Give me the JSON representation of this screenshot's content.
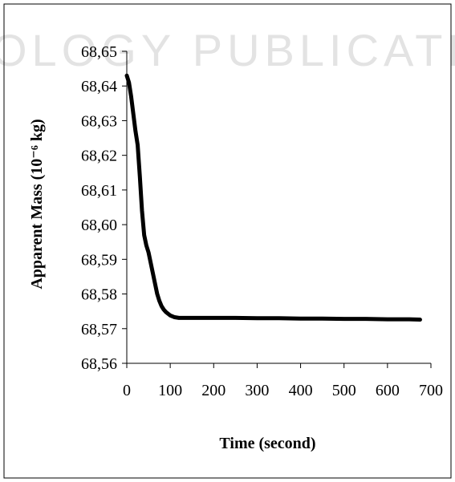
{
  "watermark": {
    "text": "OLOGY PUBLICATIONS"
  },
  "chart_data": {
    "type": "line",
    "title": "",
    "xlabel": "Time (second)",
    "ylabel": "Apparent Mass (10⁻⁶ kg)",
    "xlim": [
      0,
      700
    ],
    "ylim": [
      68.56,
      68.65
    ],
    "x_ticks": [
      0,
      100,
      200,
      300,
      400,
      500,
      600,
      700
    ],
    "y_ticks": [
      68.56,
      68.57,
      68.58,
      68.59,
      68.6,
      68.61,
      68.62,
      68.63,
      68.64,
      68.65
    ],
    "x_tick_labels": [
      "0",
      "100",
      "200",
      "300",
      "400",
      "500",
      "600",
      "700"
    ],
    "y_tick_labels": [
      "68,56",
      "68,57",
      "68,58",
      "68,59",
      "68,60",
      "68,61",
      "68,62",
      "68,63",
      "68,64",
      "68,65"
    ],
    "grid": false,
    "legend": "none",
    "line_color": "#000000",
    "series": [
      {
        "x": [
          0,
          5,
          10,
          15,
          20,
          25,
          30,
          35,
          40,
          45,
          50,
          55,
          60,
          65,
          70,
          75,
          80,
          85,
          90,
          100,
          110,
          120,
          150,
          200,
          250,
          300,
          350,
          400,
          450,
          500,
          550,
          600,
          650,
          675
        ],
        "y": [
          68.643,
          68.641,
          68.637,
          68.632,
          68.627,
          68.623,
          68.614,
          68.604,
          68.597,
          68.594,
          68.592,
          68.589,
          68.586,
          68.583,
          68.58,
          68.578,
          68.5765,
          68.5755,
          68.5748,
          68.5738,
          68.5733,
          68.5731,
          68.5731,
          68.5731,
          68.5731,
          68.573,
          68.573,
          68.5729,
          68.5729,
          68.5728,
          68.5728,
          68.5727,
          68.5727,
          68.5726
        ]
      }
    ]
  }
}
